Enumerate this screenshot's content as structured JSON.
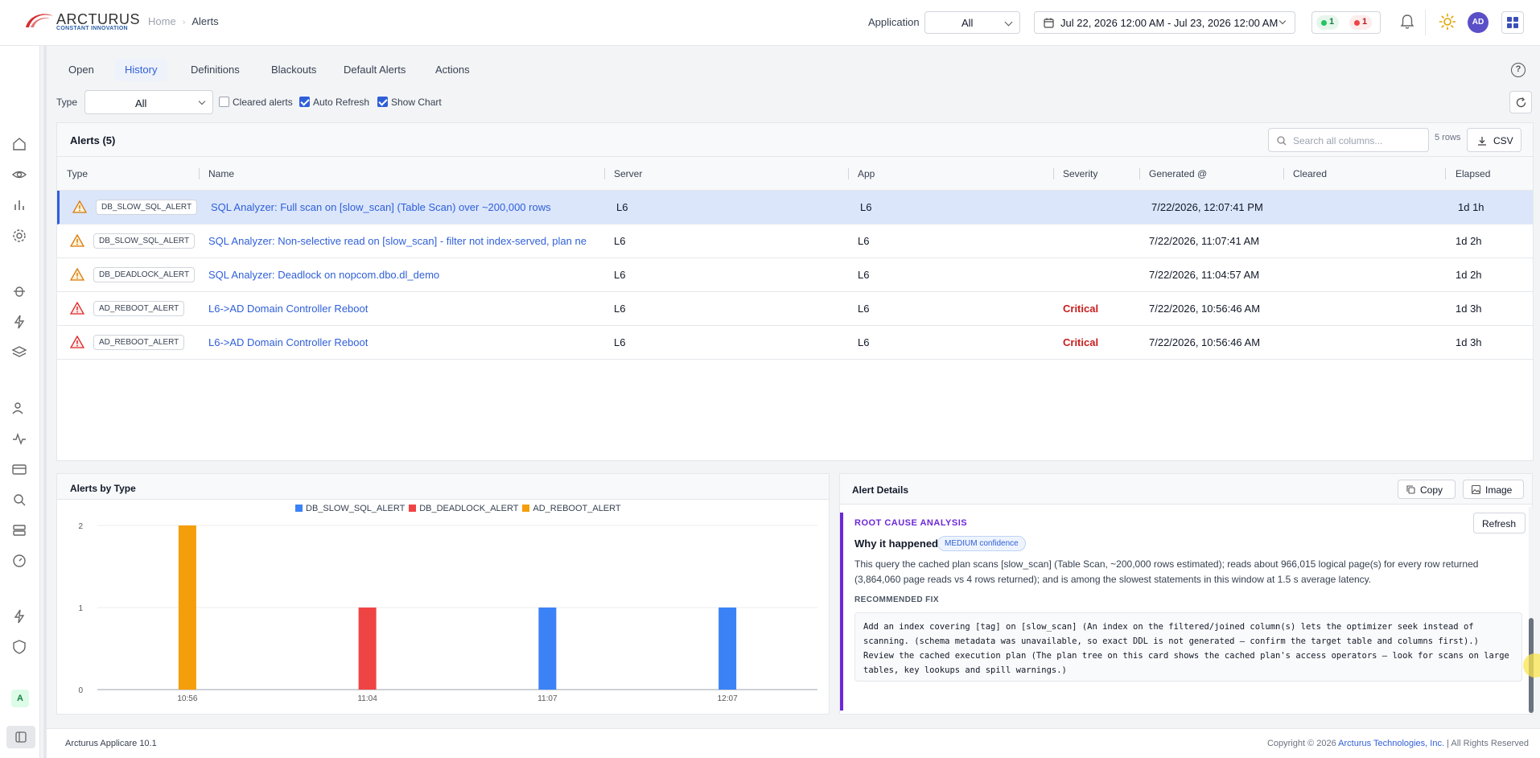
{
  "header": {
    "logo_word": "ARCTURUS",
    "logo_tag": "CONSTANT INNOVATION",
    "breadcrumb": [
      "Home",
      "Alerts"
    ],
    "application_label": "Application",
    "application_value": "All",
    "date_range": "Jul 22, 2026 12:00 AM - Jul 23, 2026 12:00 AM",
    "status_green": "1",
    "status_red": "1",
    "avatar": "AD"
  },
  "sidebar": {
    "icons": [
      "home-icon",
      "eye-icon",
      "bar-chart-icon",
      "gear-icon",
      "bug-icon",
      "bolt-icon",
      "layers-icon",
      "users-icon",
      "activity-icon",
      "card-icon",
      "search-icon",
      "server-icon",
      "gauge-icon",
      "lightning-icon",
      "shield-icon"
    ],
    "badge": "A"
  },
  "tabs": [
    "Open",
    "History",
    "Definitions",
    "Blackouts",
    "Default Alerts",
    "Actions"
  ],
  "filters": {
    "type_label": "Type",
    "type_value": "All",
    "cleared_label": "Cleared alerts",
    "auto_refresh_label": "Auto Refresh",
    "show_chart_label": "Show Chart"
  },
  "grid": {
    "title": "Alerts (5)",
    "search_placeholder": "Search all columns...",
    "rows_count": "5 rows",
    "csv_label": "CSV",
    "columns": [
      "Type",
      "Name",
      "Server",
      "App",
      "Severity",
      "Generated @",
      "Cleared",
      "Elapsed"
    ],
    "rows": [
      {
        "type": "DB_SLOW_SQL_ALERT",
        "name": "SQL Analyzer: Full scan on [slow_scan] (Table Scan) over ~200,000 rows",
        "server": "L6",
        "app": "L6",
        "severity": "",
        "generated": "7/22/2026, 12:07:41 PM",
        "cleared": "",
        "elapsed": "1d 1h"
      },
      {
        "type": "DB_SLOW_SQL_ALERT",
        "name": "SQL Analyzer: Non-selective read on [slow_scan] - filter not index-served, plan ne",
        "server": "L6",
        "app": "L6",
        "severity": "",
        "generated": "7/22/2026, 11:07:41 AM",
        "cleared": "",
        "elapsed": "1d 2h"
      },
      {
        "type": "DB_DEADLOCK_ALERT",
        "name": "SQL Analyzer: Deadlock on nopcom.dbo.dl_demo",
        "server": "L6",
        "app": "L6",
        "severity": "",
        "generated": "7/22/2026, 11:04:57 AM",
        "cleared": "",
        "elapsed": "1d 2h"
      },
      {
        "type": "AD_REBOOT_ALERT",
        "name": "L6->AD Domain Controller Reboot",
        "server": "L6",
        "app": "L6",
        "severity": "Critical",
        "generated": "7/22/2026, 10:56:46 AM",
        "cleared": "",
        "elapsed": "1d 3h"
      },
      {
        "type": "AD_REBOOT_ALERT",
        "name": "L6->AD Domain Controller Reboot",
        "server": "L6",
        "app": "L6",
        "severity": "Critical",
        "generated": "7/22/2026, 10:56:46 AM",
        "cleared": "",
        "elapsed": "1d 3h"
      }
    ]
  },
  "chart_panel": {
    "title": "Alerts by Type"
  },
  "chart_data": {
    "type": "bar",
    "categories": [
      "10:56",
      "11:04",
      "11:07",
      "12:07"
    ],
    "series": [
      {
        "name": "DB_SLOW_SQL_ALERT",
        "color": "#3b82f6",
        "values": [
          0,
          0,
          1,
          1
        ]
      },
      {
        "name": "DB_DEADLOCK_ALERT",
        "color": "#ef4444",
        "values": [
          0,
          1,
          0,
          0
        ]
      },
      {
        "name": "AD_REBOOT_ALERT",
        "color": "#f59e0b",
        "values": [
          2,
          0,
          0,
          0
        ]
      }
    ],
    "y_ticks": [
      "0",
      "1",
      "2"
    ],
    "ylim": [
      0,
      2
    ],
    "grid": true,
    "legend": "top-center"
  },
  "details": {
    "title": "Alert Details",
    "copy_label": "Copy",
    "image_label": "Image",
    "rca_title": "ROOT CAUSE ANALYSIS",
    "refresh_label": "Refresh",
    "why_label": "Why it happened",
    "confidence": "MEDIUM confidence",
    "why_text": "This query the cached plan scans [slow_scan] (Table Scan, ~200,000 rows estimated); reads about 966,015 logical page(s) for every row returned (3,864,060 page reads vs 4 rows returned); and is among the slowest statements in this window at 1.5 s average latency.",
    "fix_label": "RECOMMENDED FIX",
    "fix_text": "Add an index covering [tag] on [slow_scan] (An index on the filtered/joined column(s) lets the optimizer seek instead of scanning. (schema metadata was unavailable, so exact DDL is not generated — confirm the target table and columns first).) Review the cached execution plan (The plan tree on this card shows the cached plan's access operators — look for scans on large tables, key lookups and spill warnings.)"
  },
  "footer": {
    "version": "Arcturus Applicare 10.1",
    "copyright_prefix": "Copyright © 2026 ",
    "company": "Arcturus Technologies, Inc.",
    "copyright_suffix": " | All Rights Reserved"
  },
  "colors": {
    "accent": "#2f5fd8",
    "critical": "#c81e1e",
    "rca": "#6d28d9"
  }
}
